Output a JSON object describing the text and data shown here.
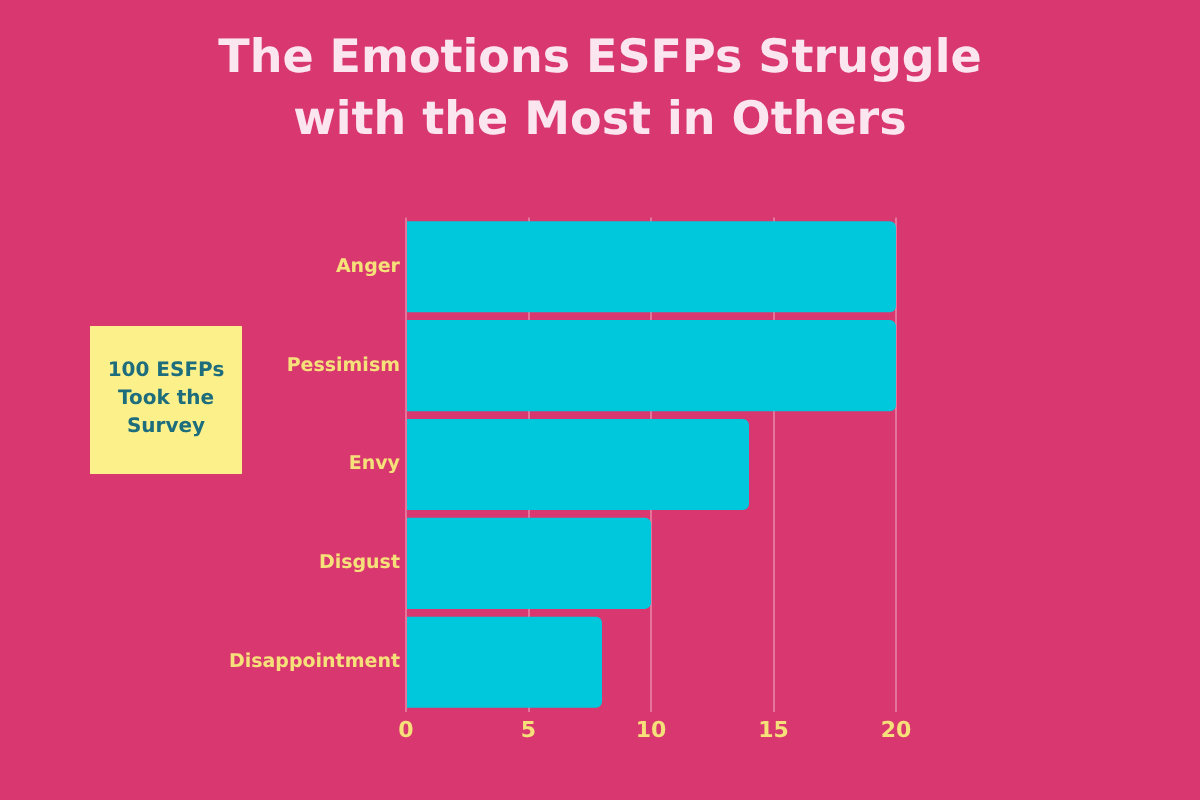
{
  "chart_data": {
    "type": "bar",
    "orientation": "horizontal",
    "title": "The Emotions ESFPs Struggle with the Most in Others",
    "categories": [
      "Anger",
      "Pessimism",
      "Envy",
      "Disgust",
      "Disappointment"
    ],
    "values": [
      20,
      20,
      14,
      10,
      8
    ],
    "color": "#00c8dc",
    "xlim": [
      0,
      20
    ],
    "xticks": [
      0,
      5,
      10,
      15,
      20
    ],
    "grid": "x",
    "annotations": [
      "100 ESFPs Took the Survey"
    ]
  }
}
